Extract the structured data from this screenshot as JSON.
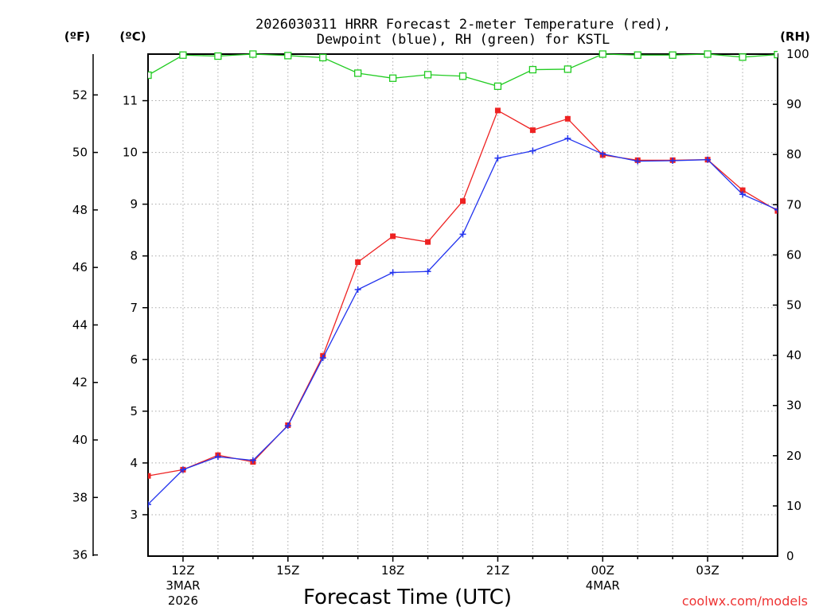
{
  "chart_data": {
    "type": "line",
    "title_lines": [
      "2026030311 HRRR Forecast 2-meter Temperature (red),",
      "Dewpoint (blue), RH (green) for KSTL"
    ],
    "xlabel": "Forecast Time (UTC)",
    "credit": "coolwx.com/models",
    "units": {
      "fahrenheit": "(ºF)",
      "celsius": "(ºC)",
      "rh": "(RH)"
    },
    "x_hours": [
      11,
      12,
      13,
      14,
      15,
      16,
      17,
      18,
      19,
      20,
      21,
      22,
      23,
      24,
      25,
      26,
      27,
      28,
      29
    ],
    "xlim": [
      11,
      29
    ],
    "x_ticks": [
      {
        "hour": 12,
        "label": "12Z",
        "date_label": "3MAR",
        "year_label": "2026"
      },
      {
        "hour": 15,
        "label": "15Z"
      },
      {
        "hour": 18,
        "label": "18Z"
      },
      {
        "hour": 21,
        "label": "21Z"
      },
      {
        "hour": 24,
        "label": "00Z",
        "date_label": "4MAR"
      },
      {
        "hour": 27,
        "label": "03Z"
      }
    ],
    "celsius_lim": [
      2.2,
      11.9
    ],
    "celsius_ticks": [
      "3",
      "4",
      "5",
      "6",
      "7",
      "8",
      "9",
      "10",
      "11"
    ],
    "fahrenheit_ticks": [
      "36",
      "38",
      "40",
      "42",
      "44",
      "46",
      "48",
      "50",
      "52"
    ],
    "rh_lim": [
      0,
      100
    ],
    "rh_ticks": [
      "0",
      "10",
      "20",
      "30",
      "40",
      "50",
      "60",
      "70",
      "80",
      "90",
      "100"
    ],
    "series": [
      {
        "name": "Temperature",
        "unit": "C",
        "color": "#ee2222",
        "marker": "filled-square",
        "values": [
          3.75,
          3.87,
          4.15,
          4.02,
          4.73,
          6.07,
          7.88,
          8.38,
          8.27,
          9.06,
          10.81,
          10.43,
          10.65,
          9.95,
          9.85,
          9.85,
          9.86,
          9.27,
          8.87
        ]
      },
      {
        "name": "Dewpoint",
        "unit": "C",
        "color": "#2233ee",
        "marker": "plus",
        "values": [
          3.2,
          3.87,
          4.12,
          4.05,
          4.72,
          6.03,
          7.35,
          7.68,
          7.7,
          8.42,
          9.89,
          10.03,
          10.27,
          9.97,
          9.83,
          9.84,
          9.86,
          9.19,
          8.89
        ]
      },
      {
        "name": "RH",
        "unit": "%",
        "color": "#22cc22",
        "marker": "open-square",
        "values": [
          95.8,
          99.8,
          99.6,
          100,
          99.7,
          99.3,
          96.2,
          95.2,
          95.9,
          95.6,
          93.6,
          96.9,
          97.0,
          100,
          99.8,
          99.8,
          100,
          99.4,
          99.9
        ]
      }
    ]
  }
}
